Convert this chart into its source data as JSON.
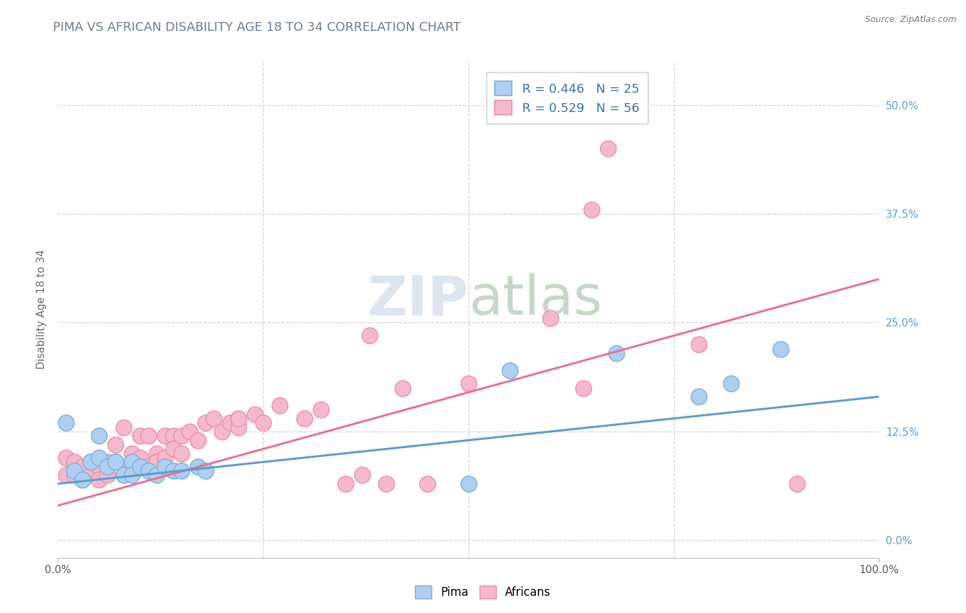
{
  "title": "PIMA VS AFRICAN DISABILITY AGE 18 TO 34 CORRELATION CHART",
  "source": "Source: ZipAtlas.com",
  "ylabel": "Disability Age 18 to 34",
  "xlim": [
    0,
    1.0
  ],
  "ylim": [
    -0.02,
    0.55
  ],
  "ytick_labels": [
    "0.0%",
    "12.5%",
    "25.0%",
    "37.5%",
    "50.0%"
  ],
  "ytick_values": [
    0.0,
    0.125,
    0.25,
    0.375,
    0.5
  ],
  "title_color": "#6b7f8a",
  "title_fontsize": 13,
  "background_color": "#ffffff",
  "grid_color": "#c8d4dc",
  "watermark_zip": "ZIP",
  "watermark_atlas": "atlas",
  "legend_R_pima": "R = 0.446",
  "legend_N_pima": "N = 25",
  "legend_R_african": "R = 0.529",
  "legend_N_african": "N = 56",
  "pima_color": "#aecff0",
  "pima_edge_color": "#7ab0d8",
  "african_color": "#f5b8cc",
  "african_edge_color": "#e890aa",
  "pima_line_color": "#5b9bd5",
  "african_line_color": "#e87090",
  "right_axis_color": "#5b9bd5",
  "pima_scatter_x": [
    0.01,
    0.02,
    0.03,
    0.04,
    0.05,
    0.05,
    0.06,
    0.07,
    0.08,
    0.09,
    0.09,
    0.1,
    0.11,
    0.12,
    0.13,
    0.14,
    0.15,
    0.17,
    0.18,
    0.5,
    0.55,
    0.68,
    0.78,
    0.82,
    0.88
  ],
  "pima_scatter_y": [
    0.135,
    0.08,
    0.07,
    0.09,
    0.12,
    0.095,
    0.085,
    0.09,
    0.075,
    0.09,
    0.075,
    0.085,
    0.08,
    0.075,
    0.085,
    0.08,
    0.08,
    0.085,
    0.08,
    0.065,
    0.195,
    0.215,
    0.165,
    0.18,
    0.22
  ],
  "african_scatter_x": [
    0.01,
    0.01,
    0.02,
    0.02,
    0.03,
    0.03,
    0.04,
    0.04,
    0.05,
    0.05,
    0.06,
    0.06,
    0.07,
    0.07,
    0.08,
    0.08,
    0.09,
    0.09,
    0.1,
    0.1,
    0.11,
    0.11,
    0.12,
    0.12,
    0.13,
    0.13,
    0.14,
    0.14,
    0.15,
    0.15,
    0.16,
    0.17,
    0.18,
    0.19,
    0.2,
    0.21,
    0.22,
    0.22,
    0.24,
    0.25,
    0.27,
    0.3,
    0.32,
    0.35,
    0.37,
    0.38,
    0.4,
    0.42,
    0.45,
    0.5,
    0.6,
    0.64,
    0.65,
    0.67,
    0.78,
    0.9
  ],
  "african_scatter_y": [
    0.095,
    0.075,
    0.09,
    0.075,
    0.085,
    0.07,
    0.09,
    0.075,
    0.085,
    0.07,
    0.09,
    0.075,
    0.11,
    0.09,
    0.13,
    0.075,
    0.1,
    0.085,
    0.12,
    0.095,
    0.085,
    0.12,
    0.1,
    0.09,
    0.12,
    0.095,
    0.12,
    0.105,
    0.12,
    0.1,
    0.125,
    0.115,
    0.135,
    0.14,
    0.125,
    0.135,
    0.13,
    0.14,
    0.145,
    0.135,
    0.155,
    0.14,
    0.15,
    0.065,
    0.075,
    0.235,
    0.065,
    0.175,
    0.065,
    0.18,
    0.255,
    0.175,
    0.38,
    0.45,
    0.225,
    0.065
  ],
  "pima_trend_x": [
    0.0,
    1.0
  ],
  "pima_trend_y": [
    0.065,
    0.165
  ],
  "african_trend_x": [
    0.0,
    1.0
  ],
  "african_trend_y": [
    0.04,
    0.3
  ]
}
